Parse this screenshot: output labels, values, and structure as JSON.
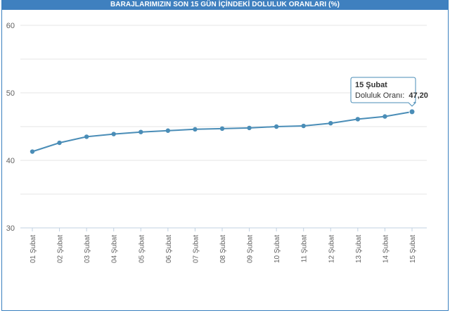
{
  "header": {
    "title": "BARAJLARIMIZIN SON 15 GÜN İÇİNDEKİ DOLULUK ORANLARI (%)"
  },
  "colors": {
    "title_bar": "#3f80bf",
    "series_line": "#4a8db7",
    "grid": "#e6e6e6",
    "axis_text": "#606060"
  },
  "tooltip": {
    "title": "15 Şubat",
    "label": "Doluluk Oranı:",
    "value": "47,20"
  },
  "chart_data": {
    "type": "line",
    "title": "BARAJLARIMIZIN SON 15 GÜN İÇİNDEKİ DOLULUK ORANLARI (%)",
    "xlabel": "",
    "ylabel": "",
    "ylim": [
      30,
      60
    ],
    "yticks": [
      30,
      40,
      50,
      60
    ],
    "grid": true,
    "categories": [
      "01 Şubat",
      "02 Şubat",
      "03 Şubat",
      "04 Şubat",
      "05 Şubat",
      "06 Şubat",
      "07 Şubat",
      "08 Şubat",
      "09 Şubat",
      "10 Şubat",
      "11 Şubat",
      "12 Şubat",
      "13 Şubat",
      "14 Şubat",
      "15 Şubat"
    ],
    "series": [
      {
        "name": "Doluluk Oranı",
        "values": [
          41.3,
          42.6,
          43.5,
          43.9,
          44.2,
          44.4,
          44.6,
          44.7,
          44.8,
          45.0,
          45.1,
          45.5,
          46.1,
          46.5,
          47.2
        ]
      }
    ]
  }
}
